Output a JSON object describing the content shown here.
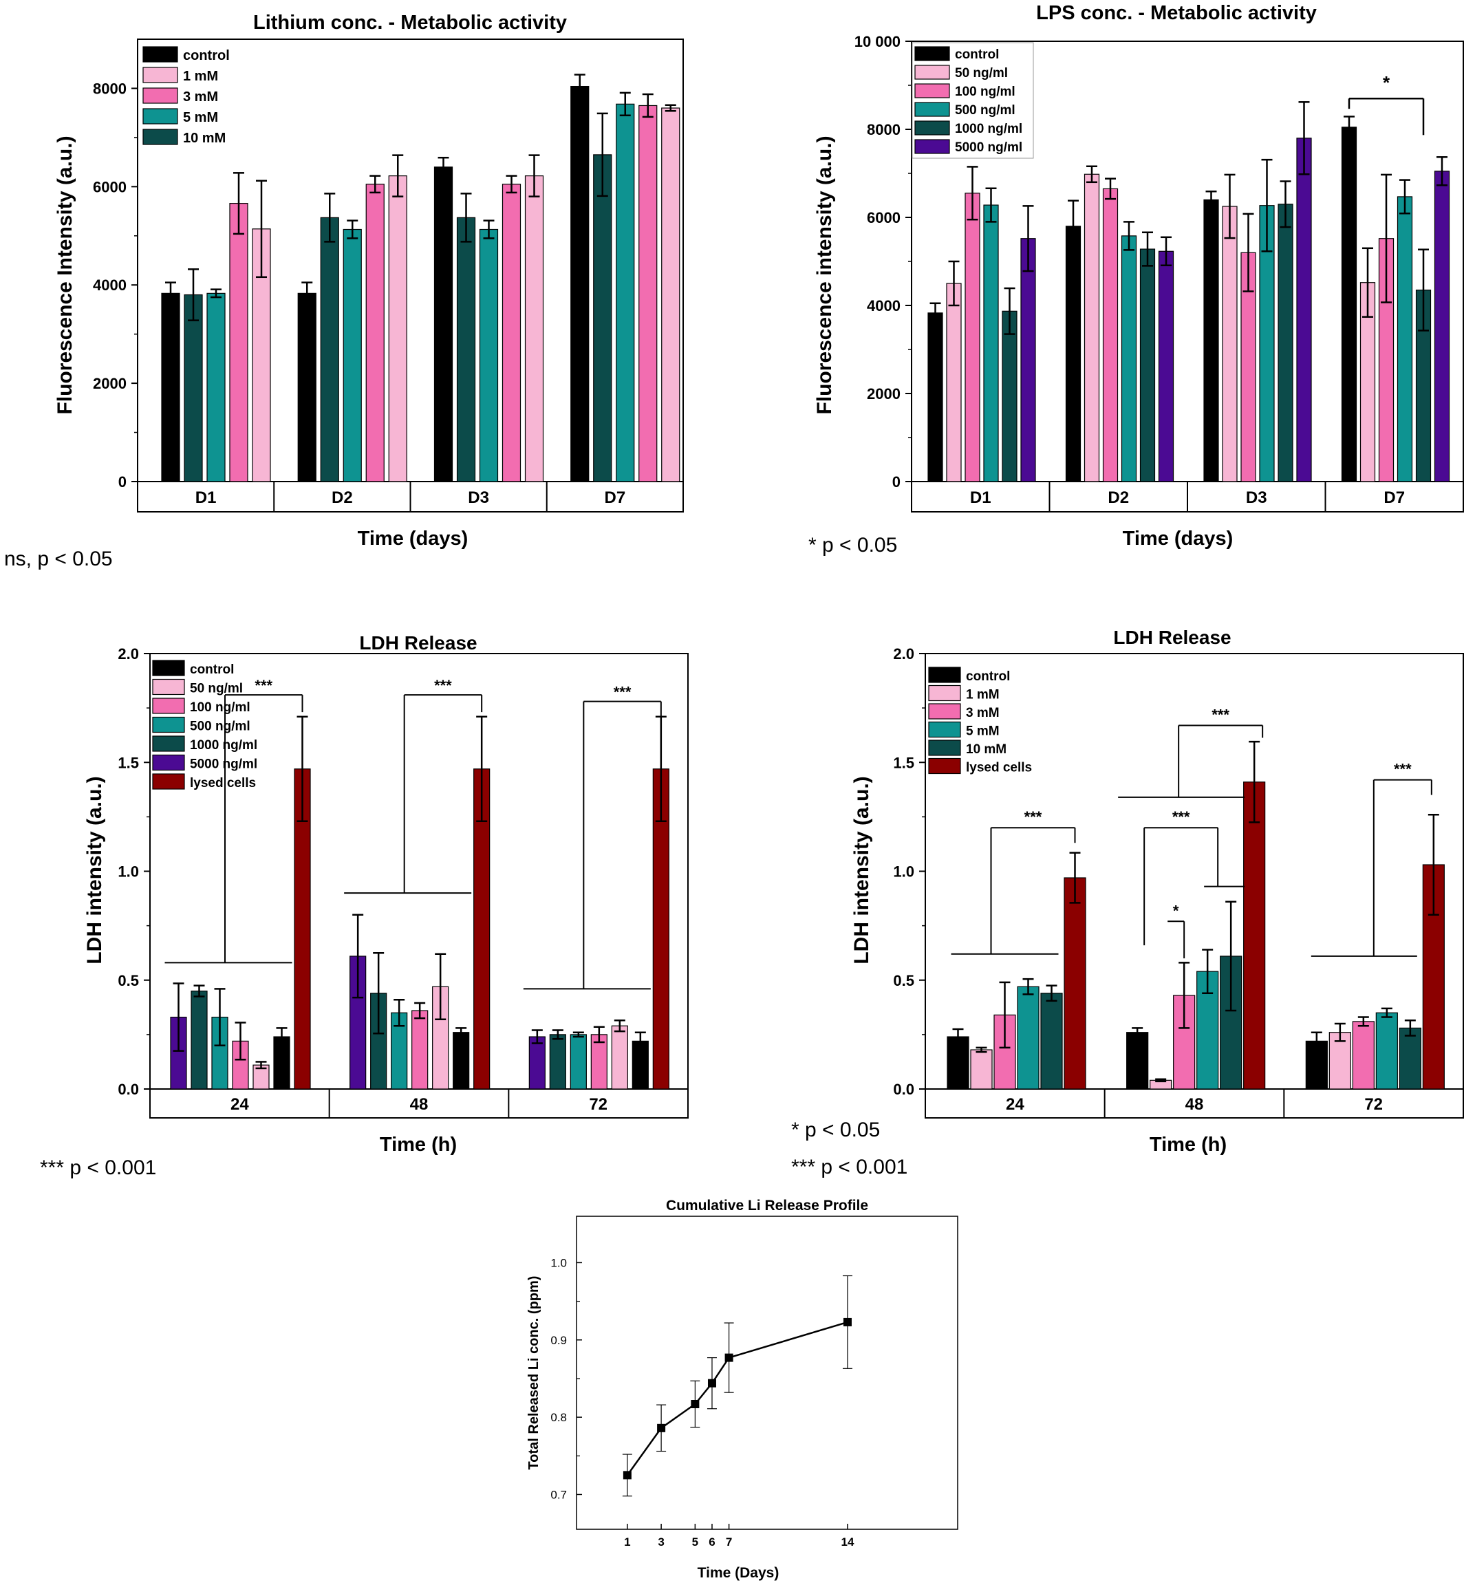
{
  "colors": {
    "black": "#000000",
    "light_pink": "#f7b6d4",
    "pink": "#f26db0",
    "teal": "#0e9391",
    "dark_teal": "#0c4b4a",
    "purple": "#4b0a93",
    "dark_red": "#8b0000"
  },
  "chart_data": [
    {
      "id": "lithium_metabolic",
      "type": "bar",
      "title": "Lithium conc. - Metabolic activity",
      "ylabel": "Fluorescence Intensity (a.u.)",
      "xlabel": "Time (days)",
      "categories": [
        "D1",
        "D2",
        "D3",
        "D7"
      ],
      "ylim": [
        0,
        9000
      ],
      "yticks": [
        0,
        2000,
        4000,
        6000,
        8000
      ],
      "legend_position": "top-left",
      "legend": [
        {
          "name": "control",
          "color": "#000000"
        },
        {
          "name": "1 mM",
          "color": "#f7b6d4"
        },
        {
          "name": "3 mM",
          "color": "#f26db0"
        },
        {
          "name": "5 mM",
          "color": "#0e9391"
        },
        {
          "name": "10 mM",
          "color": "#0c4b4a"
        }
      ],
      "bars": [
        [
          {
            "v": 3830,
            "e": 220,
            "c": "#000000"
          },
          {
            "v": 3800,
            "e": 520,
            "c": "#0c4b4a"
          },
          {
            "v": 3830,
            "e": 80,
            "c": "#0e9391"
          },
          {
            "v": 5660,
            "e": 620,
            "c": "#f26db0"
          },
          {
            "v": 5140,
            "e": 980,
            "c": "#f7b6d4"
          }
        ],
        [
          {
            "v": 3830,
            "e": 220,
            "c": "#000000"
          },
          {
            "v": 5370,
            "e": 490,
            "c": "#0c4b4a"
          },
          {
            "v": 5130,
            "e": 180,
            "c": "#0e9391"
          },
          {
            "v": 6050,
            "e": 170,
            "c": "#f26db0"
          },
          {
            "v": 6220,
            "e": 420,
            "c": "#f7b6d4"
          }
        ],
        [
          {
            "v": 6400,
            "e": 190,
            "c": "#000000"
          },
          {
            "v": 5370,
            "e": 490,
            "c": "#0c4b4a"
          },
          {
            "v": 5130,
            "e": 180,
            "c": "#0e9391"
          },
          {
            "v": 6050,
            "e": 170,
            "c": "#f26db0"
          },
          {
            "v": 6220,
            "e": 420,
            "c": "#f7b6d4"
          }
        ],
        [
          {
            "v": 8040,
            "e": 240,
            "c": "#000000"
          },
          {
            "v": 6650,
            "e": 840,
            "c": "#0c4b4a"
          },
          {
            "v": 7680,
            "e": 230,
            "c": "#0e9391"
          },
          {
            "v": 7650,
            "e": 230,
            "c": "#f26db0"
          },
          {
            "v": 7600,
            "e": 60,
            "c": "#f7b6d4"
          }
        ]
      ],
      "note": "ns, p < 0.05"
    },
    {
      "id": "lps_metabolic",
      "type": "bar",
      "title": "LPS conc. - Metabolic activity",
      "ylabel": "Fluorescence intensity (a.u.)",
      "xlabel": "Time (days)",
      "categories": [
        "D1",
        "D2",
        "D3",
        "D7"
      ],
      "ylim": [
        0,
        10000
      ],
      "yticks": [
        0,
        2000,
        4000,
        6000,
        8000,
        10000
      ],
      "ytick_labels": [
        "0",
        "2000",
        "4000",
        "6000",
        "8000",
        "10 000"
      ],
      "legend_position": "top-left",
      "legend": [
        {
          "name": "control",
          "color": "#000000"
        },
        {
          "name": "50 ng/ml",
          "color": "#f7b6d4"
        },
        {
          "name": "100 ng/ml",
          "color": "#f26db0"
        },
        {
          "name": "500 ng/ml",
          "color": "#0e9391"
        },
        {
          "name": "1000 ng/ml",
          "color": "#0c4b4a"
        },
        {
          "name": "5000 ng/ml",
          "color": "#4b0a93"
        }
      ],
      "bars": [
        [
          {
            "v": 3830,
            "e": 220,
            "c": "#000000"
          },
          {
            "v": 4500,
            "e": 500,
            "c": "#f7b6d4"
          },
          {
            "v": 6550,
            "e": 600,
            "c": "#f26db0"
          },
          {
            "v": 6280,
            "e": 380,
            "c": "#0e9391"
          },
          {
            "v": 3870,
            "e": 520,
            "c": "#0c4b4a"
          },
          {
            "v": 5520,
            "e": 740,
            "c": "#4b0a93"
          }
        ],
        [
          {
            "v": 5800,
            "e": 580,
            "c": "#000000"
          },
          {
            "v": 6980,
            "e": 180,
            "c": "#f7b6d4"
          },
          {
            "v": 6650,
            "e": 230,
            "c": "#f26db0"
          },
          {
            "v": 5580,
            "e": 320,
            "c": "#0e9391"
          },
          {
            "v": 5280,
            "e": 380,
            "c": "#0c4b4a"
          },
          {
            "v": 5230,
            "e": 320,
            "c": "#4b0a93"
          }
        ],
        [
          {
            "v": 6400,
            "e": 190,
            "c": "#000000"
          },
          {
            "v": 6250,
            "e": 720,
            "c": "#f7b6d4"
          },
          {
            "v": 5200,
            "e": 880,
            "c": "#f26db0"
          },
          {
            "v": 6270,
            "e": 1040,
            "c": "#0e9391"
          },
          {
            "v": 6300,
            "e": 520,
            "c": "#0c4b4a"
          },
          {
            "v": 7800,
            "e": 820,
            "c": "#4b0a93"
          }
        ],
        [
          {
            "v": 8050,
            "e": 240,
            "c": "#000000"
          },
          {
            "v": 4520,
            "e": 780,
            "c": "#f7b6d4"
          },
          {
            "v": 5520,
            "e": 1450,
            "c": "#f26db0"
          },
          {
            "v": 6470,
            "e": 380,
            "c": "#0e9391"
          },
          {
            "v": 4350,
            "e": 920,
            "c": "#0c4b4a"
          },
          {
            "v": 7050,
            "e": 320,
            "c": "#4b0a93"
          }
        ]
      ],
      "annotations": [
        {
          "label": "*",
          "group": 3,
          "from": 0,
          "to": 4,
          "y": 8700
        }
      ],
      "note": "* p < 0.05"
    },
    {
      "id": "ldh_lps",
      "type": "bar",
      "title": "LDH Release",
      "ylabel": "LDH intensity (a.u.)",
      "xlabel": "Time (h)",
      "categories": [
        "24",
        "48",
        "72"
      ],
      "ylim": [
        0,
        2.0
      ],
      "yticks": [
        0.0,
        0.5,
        1.0,
        1.5,
        2.0
      ],
      "ytick_labels": [
        "0.0",
        "0.5",
        "1.0",
        "1.5",
        "2.0"
      ],
      "legend_position": "top-left",
      "legend": [
        {
          "name": "control",
          "color": "#000000"
        },
        {
          "name": "50 ng/ml",
          "color": "#f7b6d4"
        },
        {
          "name": "100 ng/ml",
          "color": "#f26db0"
        },
        {
          "name": "500 ng/ml",
          "color": "#0e9391"
        },
        {
          "name": "1000 ng/ml",
          "color": "#0c4b4a"
        },
        {
          "name": "5000 ng/ml",
          "color": "#4b0a93"
        },
        {
          "name": "lysed cells",
          "color": "#8b0000"
        }
      ],
      "bars": [
        [
          {
            "v": 0.33,
            "e": 0.155,
            "c": "#4b0a93"
          },
          {
            "v": 0.45,
            "e": 0.025,
            "c": "#0c4b4a"
          },
          {
            "v": 0.33,
            "e": 0.13,
            "c": "#0e9391"
          },
          {
            "v": 0.22,
            "e": 0.085,
            "c": "#f26db0"
          },
          {
            "v": 0.11,
            "e": 0.015,
            "c": "#f7b6d4"
          },
          {
            "v": 0.24,
            "e": 0.04,
            "c": "#000000"
          },
          {
            "v": 1.47,
            "e": 0.24,
            "c": "#8b0000"
          }
        ],
        [
          {
            "v": 0.61,
            "e": 0.19,
            "c": "#4b0a93"
          },
          {
            "v": 0.44,
            "e": 0.185,
            "c": "#0c4b4a"
          },
          {
            "v": 0.35,
            "e": 0.06,
            "c": "#0e9391"
          },
          {
            "v": 0.36,
            "e": 0.035,
            "c": "#f26db0"
          },
          {
            "v": 0.47,
            "e": 0.15,
            "c": "#f7b6d4"
          },
          {
            "v": 0.26,
            "e": 0.02,
            "c": "#000000"
          },
          {
            "v": 1.47,
            "e": 0.24,
            "c": "#8b0000"
          }
        ],
        [
          {
            "v": 0.24,
            "e": 0.03,
            "c": "#4b0a93"
          },
          {
            "v": 0.25,
            "e": 0.02,
            "c": "#0c4b4a"
          },
          {
            "v": 0.25,
            "e": 0.01,
            "c": "#0e9391"
          },
          {
            "v": 0.25,
            "e": 0.035,
            "c": "#f26db0"
          },
          {
            "v": 0.29,
            "e": 0.025,
            "c": "#f7b6d4"
          },
          {
            "v": 0.22,
            "e": 0.04,
            "c": "#000000"
          },
          {
            "v": 1.47,
            "e": 0.24,
            "c": "#8b0000"
          }
        ]
      ],
      "annotations": [
        {
          "label": "***",
          "group": 0,
          "from_bar": 0,
          "to_bar": 5,
          "base": 0.58,
          "top": 1.81
        },
        {
          "label": "***",
          "group": 1,
          "from_bar": 0,
          "to_bar": 5,
          "base": 0.9,
          "top": 1.81
        },
        {
          "label": "***",
          "group": 2,
          "from_bar": 0,
          "to_bar": 5,
          "base": 0.46,
          "top": 1.78
        }
      ],
      "note": "*** p < 0.001"
    },
    {
      "id": "ldh_li",
      "type": "bar",
      "title": "LDH Release",
      "ylabel": "LDH intensity (a.u.)",
      "xlabel": "Time (h)",
      "categories": [
        "24",
        "48",
        "72"
      ],
      "ylim": [
        0,
        2.0
      ],
      "yticks": [
        0.0,
        0.5,
        1.0,
        1.5,
        2.0
      ],
      "ytick_labels": [
        "0.0",
        "0.5",
        "1.0",
        "1.5",
        "2.0"
      ],
      "legend_position": "top-left",
      "legend": [
        {
          "name": "control",
          "color": "#000000"
        },
        {
          "name": "1 mM",
          "color": "#f7b6d4"
        },
        {
          "name": "3 mM",
          "color": "#f26db0"
        },
        {
          "name": "5 mM",
          "color": "#0e9391"
        },
        {
          "name": "10 mM",
          "color": "#0c4b4a"
        },
        {
          "name": "lysed cells",
          "color": "#8b0000"
        }
      ],
      "bars": [
        [
          {
            "v": 0.24,
            "e": 0.035,
            "c": "#000000"
          },
          {
            "v": 0.18,
            "e": 0.01,
            "c": "#f7b6d4"
          },
          {
            "v": 0.34,
            "e": 0.15,
            "c": "#f26db0"
          },
          {
            "v": 0.47,
            "e": 0.035,
            "c": "#0e9391"
          },
          {
            "v": 0.44,
            "e": 0.035,
            "c": "#0c4b4a"
          },
          {
            "v": 0.97,
            "e": 0.115,
            "c": "#8b0000"
          }
        ],
        [
          {
            "v": 0.26,
            "e": 0.02,
            "c": "#000000"
          },
          {
            "v": 0.04,
            "e": 0.005,
            "c": "#f7b6d4"
          },
          {
            "v": 0.43,
            "e": 0.15,
            "c": "#f26db0"
          },
          {
            "v": 0.54,
            "e": 0.1,
            "c": "#0e9391"
          },
          {
            "v": 0.61,
            "e": 0.25,
            "c": "#0c4b4a"
          },
          {
            "v": 1.41,
            "e": 0.185,
            "c": "#8b0000"
          }
        ],
        [
          {
            "v": 0.22,
            "e": 0.04,
            "c": "#000000"
          },
          {
            "v": 0.26,
            "e": 0.04,
            "c": "#f7b6d4"
          },
          {
            "v": 0.31,
            "e": 0.02,
            "c": "#f26db0"
          },
          {
            "v": 0.35,
            "e": 0.02,
            "c": "#0e9391"
          },
          {
            "v": 0.28,
            "e": 0.035,
            "c": "#0c4b4a"
          },
          {
            "v": 1.03,
            "e": 0.23,
            "c": "#8b0000"
          }
        ]
      ],
      "annotations": [
        {
          "label": "***",
          "group": 0,
          "base": 0.62,
          "top": 1.2
        },
        {
          "label": "***",
          "group": 1,
          "base": 1.34,
          "top": 1.67
        },
        {
          "label": "***",
          "group": 1,
          "base": 0.93,
          "top": 1.2
        },
        {
          "label": "*",
          "group": 1,
          "base": 0.77,
          "top": 0.77
        },
        {
          "label": "***",
          "group": 2,
          "base": 0.61,
          "top": 1.42
        }
      ],
      "note_lines": [
        "*  p < 0.05",
        "*** p < 0.001"
      ]
    },
    {
      "id": "li_release",
      "type": "line",
      "title": "Cumulative Li Release Profile",
      "ylabel": "Total Released Li conc. (ppm)",
      "xlabel": "Time (Days)",
      "x": [
        1,
        3,
        5,
        6,
        7,
        14
      ],
      "y": [
        0.725,
        0.786,
        0.817,
        0.844,
        0.877,
        0.923
      ],
      "yerr": [
        0.027,
        0.03,
        0.03,
        0.033,
        0.045,
        0.06
      ],
      "xticks": [
        1,
        3,
        5,
        6,
        7,
        14
      ],
      "xlim": [
        -2,
        20.5
      ],
      "ylim": [
        0.655,
        1.06
      ],
      "yticks": [
        0.7,
        0.8,
        0.9,
        1.0
      ],
      "ytick_labels": [
        "0.7",
        "0.8",
        "0.9",
        "1.0"
      ]
    }
  ]
}
